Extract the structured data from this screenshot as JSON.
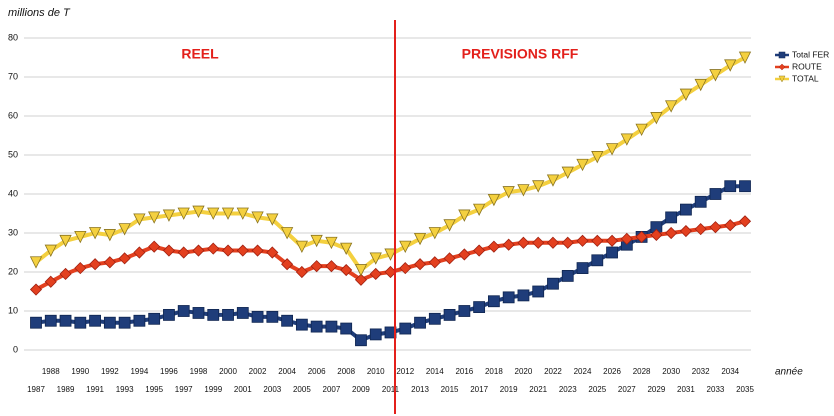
{
  "chart_data": {
    "type": "line",
    "y_label": "millions de T",
    "x_label": "année",
    "annotations": [
      "REEL",
      "PREVISIONS RFF"
    ],
    "categories": [
      "1987",
      "1988",
      "1989",
      "1990",
      "1991",
      "1992",
      "1993",
      "1994",
      "1995",
      "1996",
      "1997",
      "1998",
      "1999",
      "2000",
      "2001",
      "2002",
      "2003",
      "2004",
      "2005",
      "2006",
      "2007",
      "2008",
      "2009",
      "2010",
      "2011",
      "2012",
      "2013",
      "2014",
      "2015",
      "2016",
      "2017",
      "2018",
      "2019",
      "2020",
      "2021",
      "2022",
      "2023",
      "2024",
      "2025",
      "2026",
      "2027",
      "2028",
      "2029",
      "2030",
      "2031",
      "2032",
      "2033",
      "2034",
      "2035"
    ],
    "series": [
      {
        "name": "Total FER",
        "color": "#1f3d7a",
        "marker": "square",
        "values": [
          7,
          7.5,
          7.5,
          7,
          7.5,
          7,
          7,
          7.5,
          8,
          9,
          10,
          9.5,
          9,
          9,
          9.5,
          8.5,
          8.5,
          7.5,
          6.5,
          6,
          6,
          5.5,
          2.5,
          4,
          4.5,
          5.5,
          7,
          8,
          9,
          10,
          11,
          12.5,
          13.5,
          14,
          15,
          17,
          19,
          21,
          23,
          25,
          27,
          29,
          31.5,
          34,
          36,
          38,
          40,
          42,
          42
        ]
      },
      {
        "name": "ROUTE",
        "color": "#e3401f",
        "marker": "diamond",
        "values": [
          15.5,
          17.5,
          19.5,
          21,
          22,
          22.5,
          23.5,
          25,
          26.5,
          25.5,
          25,
          25.5,
          26,
          25.5,
          25.5,
          25.5,
          25,
          22,
          20,
          21.5,
          21.5,
          20.5,
          18,
          19.5,
          20,
          21,
          22,
          22.5,
          23.5,
          24.5,
          25.5,
          26.5,
          27,
          27.5,
          27.5,
          27.5,
          27.5,
          28,
          28,
          28,
          28.5,
          29,
          29.5,
          30,
          30.5,
          31,
          31.5,
          32,
          33
        ]
      },
      {
        "name": "TOTAL",
        "color": "#f4d03f",
        "marker": "triangle-down",
        "values": [
          22.5,
          25.5,
          28,
          29,
          30,
          29.5,
          31,
          33.5,
          34,
          34.5,
          35,
          35.5,
          35,
          35,
          35,
          34,
          33.5,
          30,
          26.5,
          28,
          27.5,
          26,
          20.5,
          23.5,
          24.5,
          26.5,
          28.5,
          30,
          32,
          34.5,
          36,
          38.5,
          40.5,
          41,
          42,
          43.5,
          45.5,
          47.5,
          49.5,
          51.5,
          54,
          56.5,
          59.5,
          62.5,
          65.5,
          68,
          70.5,
          73,
          75
        ]
      }
    ],
    "ylim": [
      0,
      80
    ],
    "yticks": [
      0,
      10,
      20,
      30,
      40,
      50,
      60,
      70,
      80
    ],
    "grid": true
  }
}
